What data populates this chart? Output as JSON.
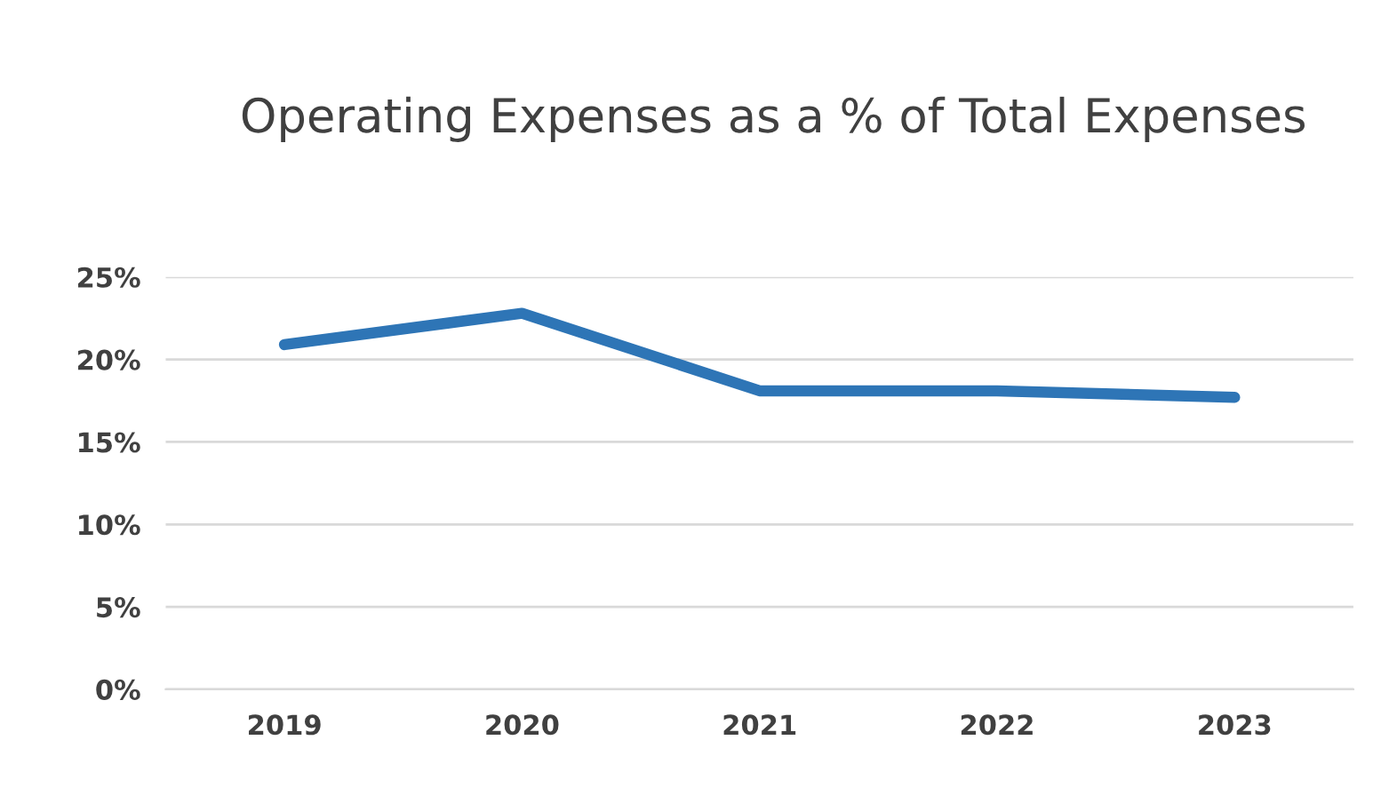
{
  "chart_data": {
    "type": "line",
    "title": "Operating Expenses as a % of Total Expenses",
    "categories": [
      "2019",
      "2020",
      "2021",
      "2022",
      "2023"
    ],
    "series": [
      {
        "color": "#2e75b6",
        "values": [
          20.9,
          22.8,
          18.1,
          18.1,
          17.7
        ]
      }
    ],
    "ylim": [
      0,
      25
    ],
    "yticks": [
      {
        "value": 0,
        "label": "0%"
      },
      {
        "value": 5,
        "label": "5%"
      },
      {
        "value": 10,
        "label": "10%"
      },
      {
        "value": 15,
        "label": "15%"
      },
      {
        "value": 20,
        "label": "20%"
      },
      {
        "value": 25,
        "label": "25%"
      }
    ],
    "grid": "y",
    "marker": "none",
    "line_style": "solid"
  }
}
